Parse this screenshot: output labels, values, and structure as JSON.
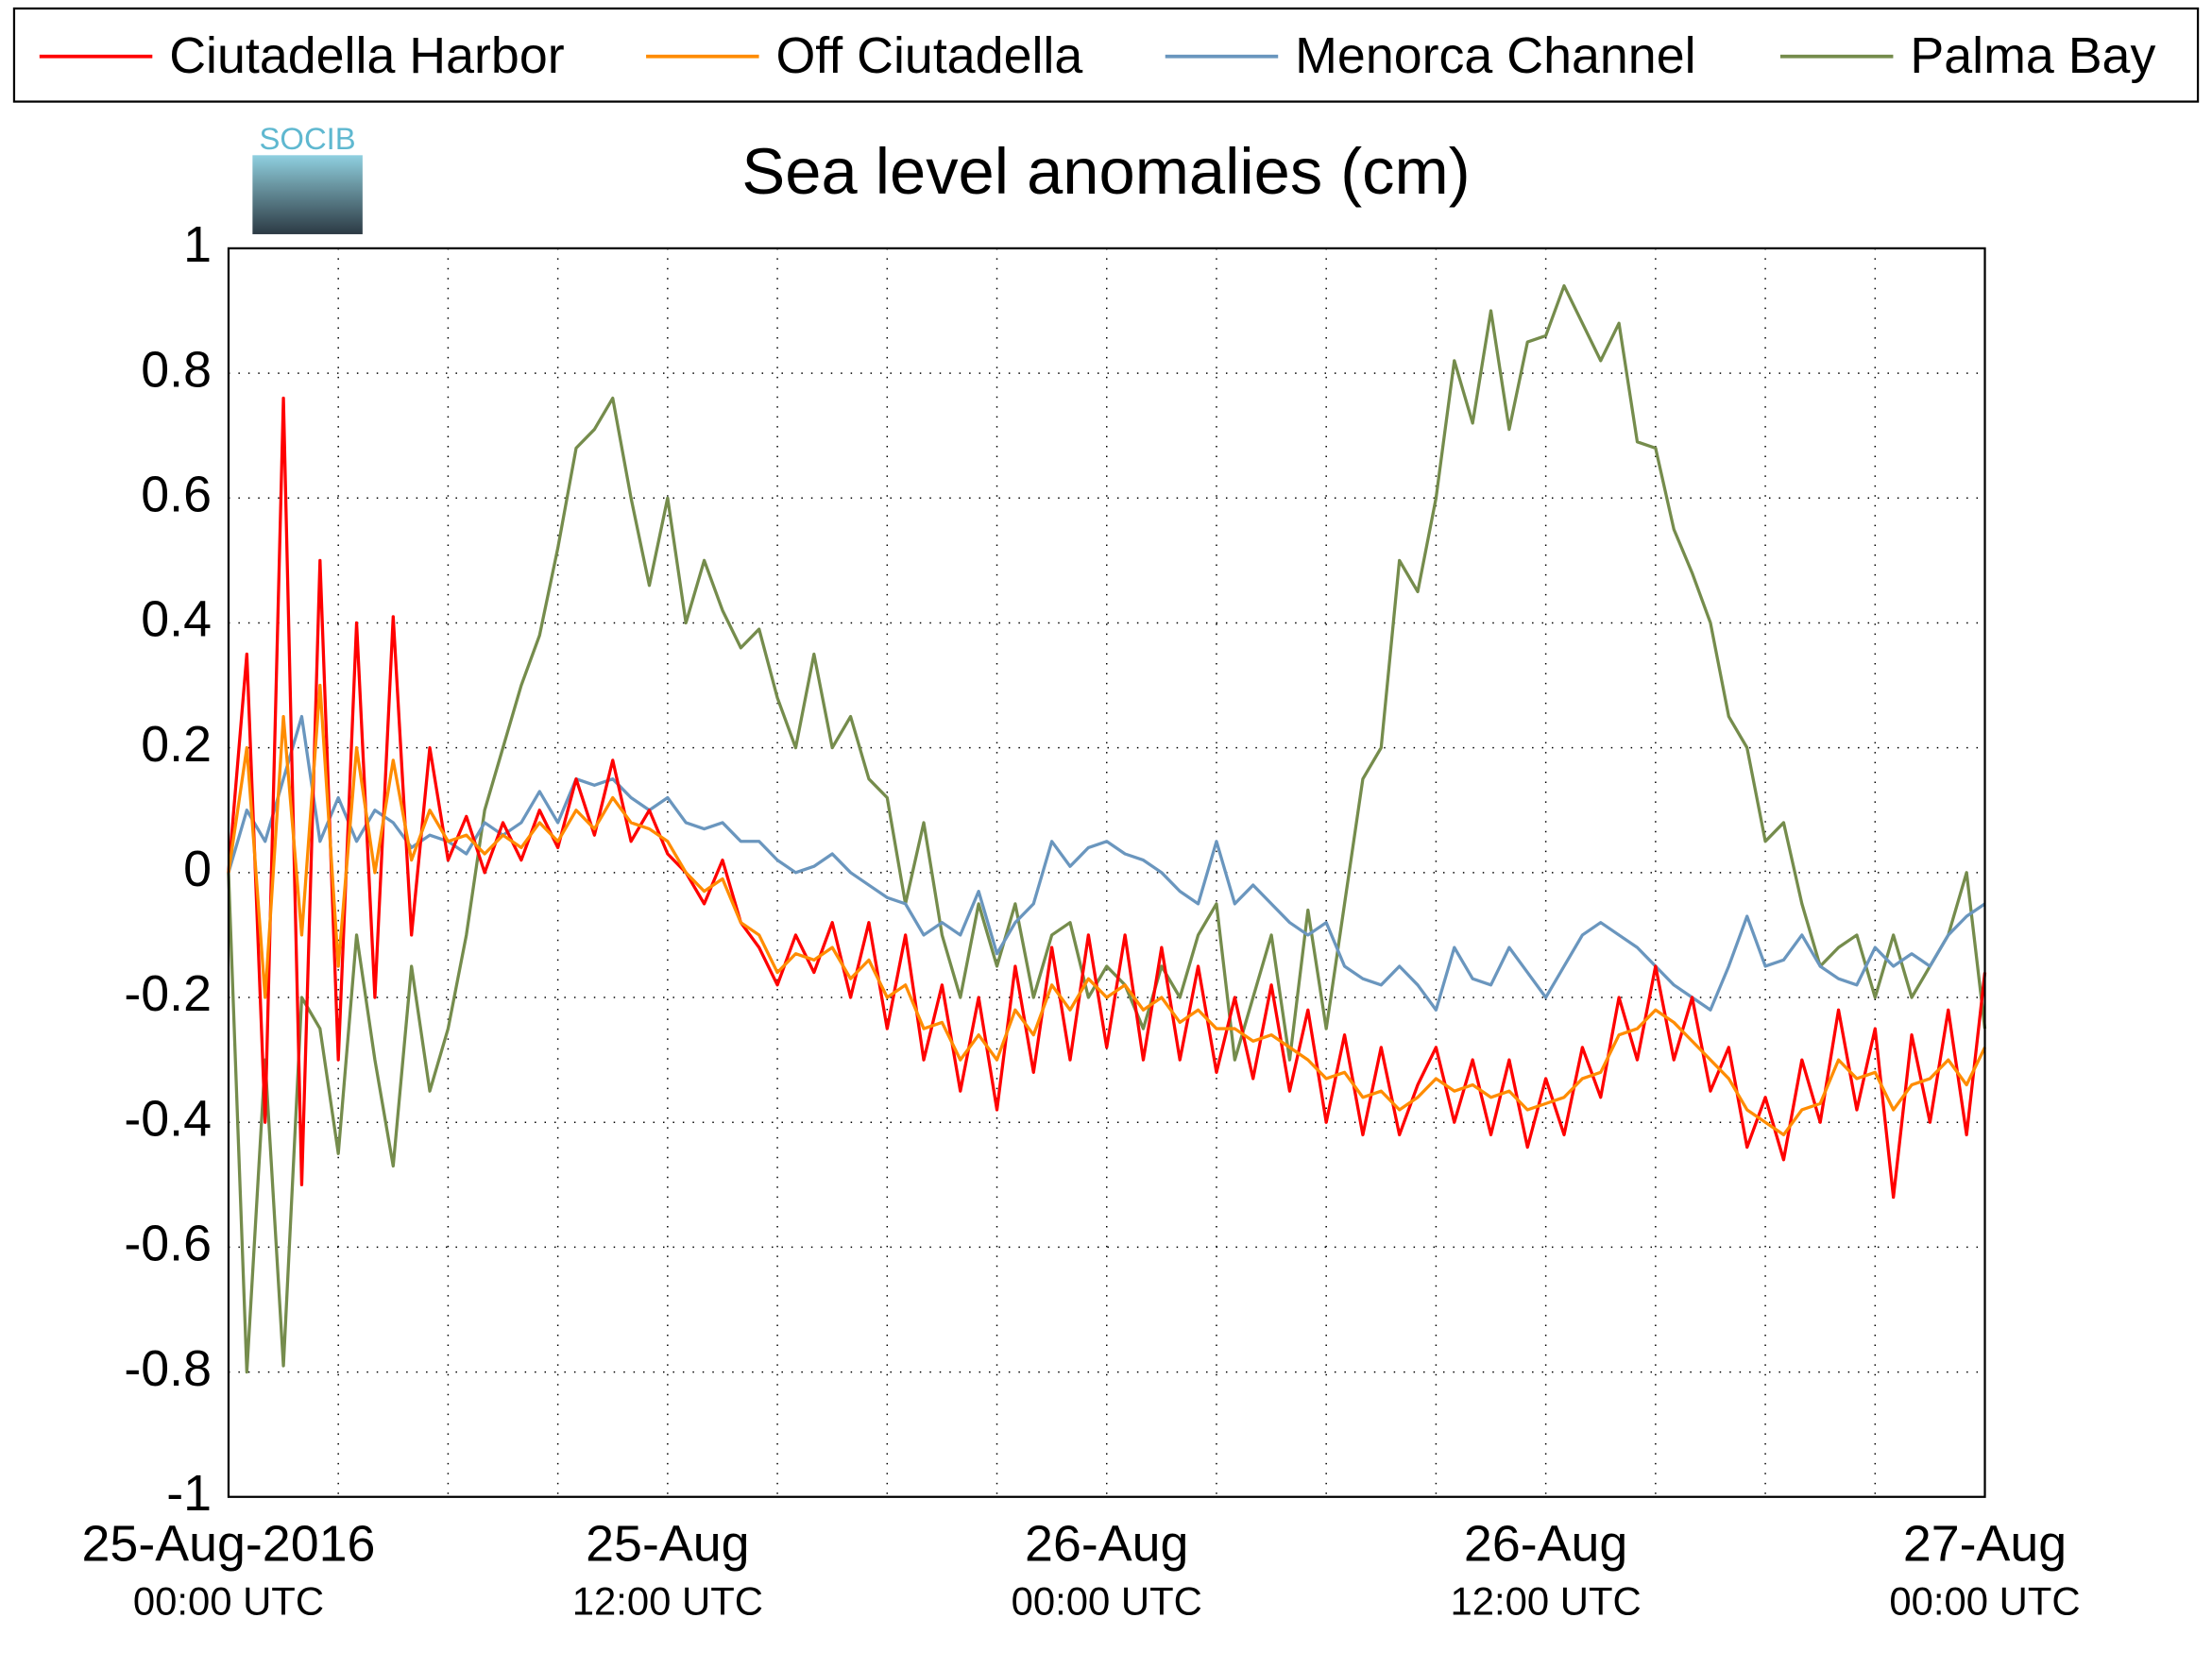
{
  "chart_data": {
    "type": "line",
    "title": "Sea level anomalies (cm)",
    "logo": "SOCIB",
    "xlim": [
      0,
      48
    ],
    "ylim": [
      -1,
      1
    ],
    "yticks": [
      -1,
      -0.8,
      -0.6,
      -0.4,
      -0.2,
      0,
      0.2,
      0.4,
      0.6,
      0.8,
      1
    ],
    "xticks": [
      {
        "value": 0,
        "label": "25-Aug-2016",
        "sublabel": "00:00 UTC"
      },
      3,
      6,
      9,
      {
        "value": 12,
        "label": "25-Aug",
        "sublabel": "12:00 UTC"
      },
      15,
      18,
      21,
      {
        "value": 24,
        "label": "26-Aug",
        "sublabel": "00:00 UTC"
      },
      27,
      30,
      33,
      {
        "value": 36,
        "label": "26-Aug",
        "sublabel": "12:00 UTC"
      },
      39,
      42,
      45,
      {
        "value": 48,
        "label": "27-Aug",
        "sublabel": "00:00 UTC"
      }
    ],
    "grid": true,
    "legend": "top",
    "x": [
      0,
      0.5,
      1,
      1.5,
      2,
      2.5,
      3,
      3.5,
      4,
      4.5,
      5,
      5.5,
      6,
      6.5,
      7,
      7.5,
      8,
      8.5,
      9,
      9.5,
      10,
      10.5,
      11,
      11.5,
      12,
      12.5,
      13,
      13.5,
      14,
      14.5,
      15,
      15.5,
      16,
      16.5,
      17,
      17.5,
      18,
      18.5,
      19,
      19.5,
      20,
      20.5,
      21,
      21.5,
      22,
      22.5,
      23,
      23.5,
      24,
      24.5,
      25,
      25.5,
      26,
      26.5,
      27,
      27.5,
      28,
      28.5,
      29,
      29.5,
      30,
      30.5,
      31,
      31.5,
      32,
      32.5,
      33,
      33.5,
      34,
      34.5,
      35,
      35.5,
      36,
      36.5,
      37,
      37.5,
      38,
      38.5,
      39,
      39.5,
      40,
      40.5,
      41,
      41.5,
      42,
      42.5,
      43,
      43.5,
      44,
      44.5,
      45,
      45.5,
      46,
      46.5,
      47,
      47.5,
      48
    ],
    "series": [
      {
        "name": "Ciutadella Harbor",
        "color": "#ff0000",
        "values": [
          0,
          0.35,
          -0.4,
          0.76,
          -0.5,
          0.5,
          -0.3,
          0.4,
          -0.2,
          0.41,
          -0.1,
          0.2,
          0.02,
          0.09,
          0,
          0.08,
          0.02,
          0.1,
          0.04,
          0.15,
          0.06,
          0.18,
          0.05,
          0.1,
          0.03,
          0,
          -0.05,
          0.02,
          -0.08,
          -0.12,
          -0.18,
          -0.1,
          -0.16,
          -0.08,
          -0.2,
          -0.08,
          -0.25,
          -0.1,
          -0.3,
          -0.18,
          -0.35,
          -0.2,
          -0.38,
          -0.15,
          -0.32,
          -0.12,
          -0.3,
          -0.1,
          -0.28,
          -0.1,
          -0.3,
          -0.12,
          -0.3,
          -0.15,
          -0.32,
          -0.2,
          -0.33,
          -0.18,
          -0.35,
          -0.22,
          -0.4,
          -0.26,
          -0.42,
          -0.28,
          -0.42,
          -0.34,
          -0.28,
          -0.4,
          -0.3,
          -0.42,
          -0.3,
          -0.44,
          -0.33,
          -0.42,
          -0.28,
          -0.36,
          -0.2,
          -0.3,
          -0.15,
          -0.3,
          -0.2,
          -0.35,
          -0.28,
          -0.44,
          -0.36,
          -0.46,
          -0.3,
          -0.4,
          -0.22,
          -0.38,
          -0.25,
          -0.52,
          -0.26,
          -0.4,
          -0.22,
          -0.42,
          -0.16
        ]
      },
      {
        "name": "Off Ciutadella",
        "color": "#ff8c00",
        "values": [
          0,
          0.2,
          -0.2,
          0.25,
          -0.1,
          0.3,
          -0.15,
          0.2,
          0,
          0.18,
          0.02,
          0.1,
          0.05,
          0.06,
          0.03,
          0.06,
          0.04,
          0.08,
          0.05,
          0.1,
          0.07,
          0.12,
          0.08,
          0.07,
          0.05,
          0,
          -0.03,
          -0.01,
          -0.08,
          -0.1,
          -0.16,
          -0.13,
          -0.14,
          -0.12,
          -0.17,
          -0.14,
          -0.2,
          -0.18,
          -0.25,
          -0.24,
          -0.3,
          -0.26,
          -0.3,
          -0.22,
          -0.26,
          -0.18,
          -0.22,
          -0.17,
          -0.2,
          -0.18,
          -0.22,
          -0.2,
          -0.24,
          -0.22,
          -0.25,
          -0.25,
          -0.27,
          -0.26,
          -0.28,
          -0.3,
          -0.33,
          -0.32,
          -0.36,
          -0.35,
          -0.38,
          -0.36,
          -0.33,
          -0.35,
          -0.34,
          -0.36,
          -0.35,
          -0.38,
          -0.37,
          -0.36,
          -0.33,
          -0.32,
          -0.26,
          -0.25,
          -0.22,
          -0.24,
          -0.27,
          -0.3,
          -0.33,
          -0.38,
          -0.4,
          -0.42,
          -0.38,
          -0.37,
          -0.3,
          -0.33,
          -0.32,
          -0.38,
          -0.34,
          -0.33,
          -0.3,
          -0.34,
          -0.28
        ]
      },
      {
        "name": "Menorca Channel",
        "color": "#6a96be",
        "values": [
          0,
          0.1,
          0.05,
          0.15,
          0.25,
          0.05,
          0.12,
          0.05,
          0.1,
          0.08,
          0.04,
          0.06,
          0.05,
          0.03,
          0.08,
          0.06,
          0.08,
          0.13,
          0.08,
          0.15,
          0.14,
          0.15,
          0.12,
          0.1,
          0.12,
          0.08,
          0.07,
          0.08,
          0.05,
          0.05,
          0.02,
          0,
          0.01,
          0.03,
          0,
          -0.02,
          -0.04,
          -0.05,
          -0.1,
          -0.08,
          -0.1,
          -0.03,
          -0.13,
          -0.08,
          -0.05,
          0.05,
          0.01,
          0.04,
          0.05,
          0.03,
          0.02,
          0,
          -0.03,
          -0.05,
          0.05,
          -0.05,
          -0.02,
          -0.05,
          -0.08,
          -0.1,
          -0.08,
          -0.15,
          -0.17,
          -0.18,
          -0.15,
          -0.18,
          -0.22,
          -0.12,
          -0.17,
          -0.18,
          -0.12,
          -0.16,
          -0.2,
          -0.15,
          -0.1,
          -0.08,
          -0.1,
          -0.12,
          -0.15,
          -0.18,
          -0.2,
          -0.22,
          -0.15,
          -0.07,
          -0.15,
          -0.14,
          -0.1,
          -0.15,
          -0.17,
          -0.18,
          -0.12,
          -0.15,
          -0.13,
          -0.15,
          -0.1,
          -0.07,
          -0.05
        ]
      },
      {
        "name": "Palma Bay",
        "color": "#758c4c",
        "values": [
          0,
          -0.8,
          -0.3,
          -0.79,
          -0.2,
          -0.25,
          -0.45,
          -0.1,
          -0.3,
          -0.47,
          -0.15,
          -0.35,
          -0.25,
          -0.1,
          0.1,
          0.2,
          0.3,
          0.38,
          0.52,
          0.68,
          0.71,
          0.76,
          0.6,
          0.46,
          0.6,
          0.4,
          0.5,
          0.42,
          0.36,
          0.39,
          0.28,
          0.2,
          0.35,
          0.2,
          0.25,
          0.15,
          0.12,
          -0.05,
          0.08,
          -0.1,
          -0.2,
          -0.05,
          -0.15,
          -0.05,
          -0.2,
          -0.1,
          -0.08,
          -0.2,
          -0.15,
          -0.18,
          -0.25,
          -0.15,
          -0.2,
          -0.1,
          -0.05,
          -0.3,
          -0.2,
          -0.1,
          -0.3,
          -0.06,
          -0.25,
          -0.05,
          0.15,
          0.2,
          0.5,
          0.45,
          0.6,
          0.82,
          0.72,
          0.9,
          0.71,
          0.85,
          0.86,
          0.94,
          0.88,
          0.82,
          0.88,
          0.69,
          0.68,
          0.55,
          0.48,
          0.4,
          0.25,
          0.2,
          0.05,
          0.08,
          -0.05,
          -0.15,
          -0.12,
          -0.1,
          -0.2,
          -0.1,
          -0.2,
          -0.15,
          -0.1,
          0,
          -0.25
        ]
      }
    ]
  }
}
